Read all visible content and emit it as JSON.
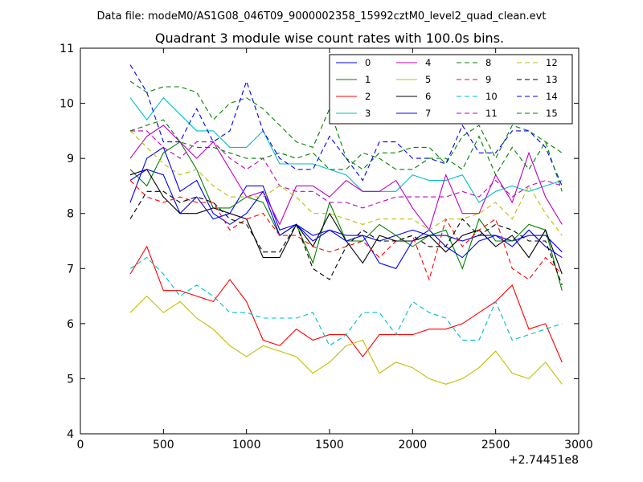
{
  "chart_data": {
    "type": "line",
    "suptitle": "Data file: modeM0/AS1G08_046T09_9000002358_15992cztM0_level2_quad_clean.evt",
    "title": "Quadrant 3 module wise count rates with 100.0s bins.",
    "xlabel": "",
    "ylabel": "",
    "x_offset_label": "+2.74451e8",
    "xlim": [
      0,
      3000
    ],
    "ylim": [
      4,
      11
    ],
    "xticks": [
      0,
      500,
      1000,
      1500,
      2000,
      2500,
      3000
    ],
    "yticks": [
      4,
      5,
      6,
      7,
      8,
      9,
      10,
      11
    ],
    "grid": false,
    "legend_position": "top-right",
    "legend_columns": 4,
    "x": [
      300,
      400,
      500,
      600,
      700,
      800,
      900,
      1000,
      1100,
      1200,
      1300,
      1400,
      1500,
      1600,
      1700,
      1800,
      1900,
      2000,
      2100,
      2200,
      2300,
      2400,
      2500,
      2600,
      2700,
      2800,
      2900
    ],
    "series": [
      {
        "name": "0",
        "color": "#0000ff",
        "dash": "solid",
        "values": [
          8.6,
          8.8,
          8.7,
          8.0,
          8.3,
          7.9,
          8.0,
          8.5,
          8.5,
          7.7,
          7.8,
          7.6,
          7.7,
          7.6,
          7.6,
          7.5,
          7.6,
          7.7,
          7.6,
          7.6,
          7.5,
          7.6,
          7.6,
          7.5,
          7.6,
          7.6,
          7.3
        ]
      },
      {
        "name": "1",
        "color": "#008000",
        "dash": "solid",
        "values": [
          8.8,
          8.5,
          9.1,
          9.3,
          8.8,
          8.1,
          8.1,
          8.3,
          8.2,
          7.6,
          7.8,
          7.1,
          8.2,
          7.5,
          7.5,
          7.8,
          7.6,
          7.4,
          7.6,
          7.7,
          7.0,
          7.9,
          7.5,
          7.5,
          7.8,
          7.7,
          6.6
        ]
      },
      {
        "name": "2",
        "color": "#ff0000",
        "dash": "solid",
        "values": [
          6.9,
          7.4,
          6.6,
          6.6,
          6.5,
          6.4,
          6.8,
          6.4,
          5.7,
          5.6,
          5.9,
          5.7,
          5.8,
          5.8,
          5.4,
          5.8,
          5.8,
          5.8,
          5.9,
          5.9,
          6.0,
          6.2,
          6.4,
          6.7,
          5.9,
          6.0,
          5.3
        ]
      },
      {
        "name": "3",
        "color": "#00bfbf",
        "dash": "solid",
        "values": [
          10.1,
          9.7,
          10.1,
          9.8,
          9.5,
          9.5,
          9.2,
          9.2,
          9.5,
          8.9,
          8.9,
          8.9,
          8.8,
          8.7,
          8.4,
          8.4,
          8.4,
          8.7,
          8.6,
          8.6,
          8.7,
          8.2,
          8.4,
          8.5,
          8.4,
          8.5,
          8.6
        ]
      },
      {
        "name": "4",
        "color": "#bf00bf",
        "dash": "solid",
        "values": [
          9.0,
          9.4,
          9.6,
          9.3,
          9.0,
          9.3,
          8.8,
          8.3,
          8.4,
          7.8,
          8.5,
          8.5,
          8.3,
          8.6,
          8.4,
          8.4,
          8.6,
          8.1,
          7.7,
          8.7,
          8.0,
          8.0,
          8.7,
          8.2,
          9.1,
          8.3,
          7.8
        ]
      },
      {
        "name": "5",
        "color": "#bfbf00",
        "dash": "solid",
        "values": [
          6.2,
          6.5,
          6.2,
          6.4,
          6.1,
          5.9,
          5.6,
          5.4,
          5.6,
          5.5,
          5.4,
          5.1,
          5.3,
          5.6,
          5.7,
          5.1,
          5.3,
          5.2,
          5.0,
          4.9,
          5.0,
          5.2,
          5.5,
          5.1,
          5.0,
          5.3,
          4.9
        ]
      },
      {
        "name": "6",
        "color": "#000000",
        "dash": "solid",
        "values": [
          8.7,
          8.8,
          8.3,
          8.0,
          8.0,
          8.1,
          8.0,
          7.9,
          7.2,
          7.2,
          7.8,
          7.4,
          8.0,
          7.5,
          7.1,
          7.6,
          7.5,
          7.5,
          7.6,
          7.3,
          7.6,
          7.7,
          7.4,
          7.6,
          7.2,
          7.7,
          6.9
        ]
      },
      {
        "name": "7",
        "color": "#0000ff",
        "dash": "solid",
        "values": [
          8.2,
          9.0,
          9.2,
          8.4,
          8.6,
          8.0,
          7.8,
          8.0,
          8.4,
          7.6,
          7.8,
          7.5,
          7.7,
          7.5,
          7.6,
          7.1,
          7.0,
          7.5,
          7.7,
          7.4,
          7.2,
          7.5,
          7.6,
          7.4,
          7.7,
          7.4,
          7.2
        ]
      },
      {
        "name": "8",
        "color": "#008000",
        "dash": "dashed",
        "values": [
          10.4,
          10.2,
          10.3,
          10.3,
          10.2,
          9.7,
          10.0,
          10.1,
          9.9,
          9.6,
          9.3,
          9.2,
          9.9,
          9.0,
          8.8,
          9.1,
          9.1,
          9.2,
          9.2,
          8.9,
          9.4,
          9.6,
          9.0,
          9.6,
          9.5,
          9.3,
          9.1
        ]
      },
      {
        "name": "9",
        "color": "#ff0000",
        "dash": "dashed",
        "values": [
          8.6,
          8.3,
          8.2,
          8.3,
          8.2,
          8.2,
          7.7,
          7.9,
          8.0,
          7.6,
          7.6,
          7.4,
          7.3,
          7.4,
          7.5,
          7.2,
          7.5,
          7.6,
          6.8,
          7.9,
          7.4,
          7.7,
          7.9,
          7.0,
          6.8,
          7.2,
          6.9
        ]
      },
      {
        "name": "10",
        "color": "#00bfbf",
        "dash": "dashed",
        "values": [
          7.0,
          7.2,
          6.9,
          6.5,
          6.7,
          6.5,
          6.2,
          6.2,
          6.1,
          6.1,
          6.1,
          6.2,
          5.6,
          5.8,
          6.2,
          6.2,
          5.8,
          6.4,
          6.2,
          6.1,
          5.7,
          5.7,
          6.4,
          5.7,
          5.8,
          5.9,
          6.0
        ]
      },
      {
        "name": "11",
        "color": "#bf00bf",
        "dash": "dashed",
        "values": [
          9.5,
          9.5,
          9.2,
          9.0,
          9.3,
          9.3,
          9.0,
          8.8,
          9.0,
          8.5,
          8.4,
          8.4,
          8.2,
          8.2,
          8.1,
          8.2,
          8.3,
          8.3,
          8.3,
          8.3,
          8.4,
          8.3,
          8.6,
          8.3,
          8.5,
          8.6,
          8.5
        ]
      },
      {
        "name": "12",
        "color": "#bfbf00",
        "dash": "dashed",
        "values": [
          9.5,
          9.2,
          8.9,
          8.7,
          8.8,
          8.5,
          8.3,
          8.3,
          8.3,
          8.5,
          8.3,
          8.0,
          8.0,
          7.9,
          7.8,
          7.9,
          7.9,
          7.9,
          7.7,
          7.9,
          7.9,
          8.0,
          8.2,
          7.9,
          8.5,
          8.0,
          7.6
        ]
      },
      {
        "name": "13",
        "color": "#000000",
        "dash": "dashed",
        "values": [
          7.9,
          8.4,
          8.4,
          8.2,
          8.3,
          8.2,
          7.9,
          7.8,
          7.3,
          7.3,
          7.8,
          7.0,
          6.8,
          7.4,
          7.7,
          7.5,
          7.5,
          7.6,
          7.4,
          7.4,
          7.9,
          7.6,
          7.8,
          7.7,
          7.5,
          7.5,
          6.7
        ]
      },
      {
        "name": "14",
        "color": "#0000ff",
        "dash": "dashed",
        "values": [
          10.7,
          10.2,
          9.3,
          9.3,
          9.9,
          9.3,
          9.5,
          10.4,
          9.5,
          9.0,
          8.8,
          8.8,
          9.4,
          9.0,
          8.6,
          9.3,
          9.3,
          9.0,
          9.0,
          8.9,
          9.6,
          9.1,
          9.1,
          9.5,
          9.5,
          9.2,
          8.5
        ]
      },
      {
        "name": "15",
        "color": "#008000",
        "dash": "dashed",
        "values": [
          9.5,
          9.6,
          9.7,
          9.3,
          9.2,
          9.2,
          9.1,
          9.0,
          9.0,
          9.1,
          9.0,
          9.1,
          8.8,
          8.8,
          9.1,
          9.0,
          8.8,
          8.8,
          9.0,
          9.0,
          8.8,
          9.4,
          8.7,
          9.2,
          8.8,
          9.3,
          8.4
        ]
      }
    ]
  }
}
